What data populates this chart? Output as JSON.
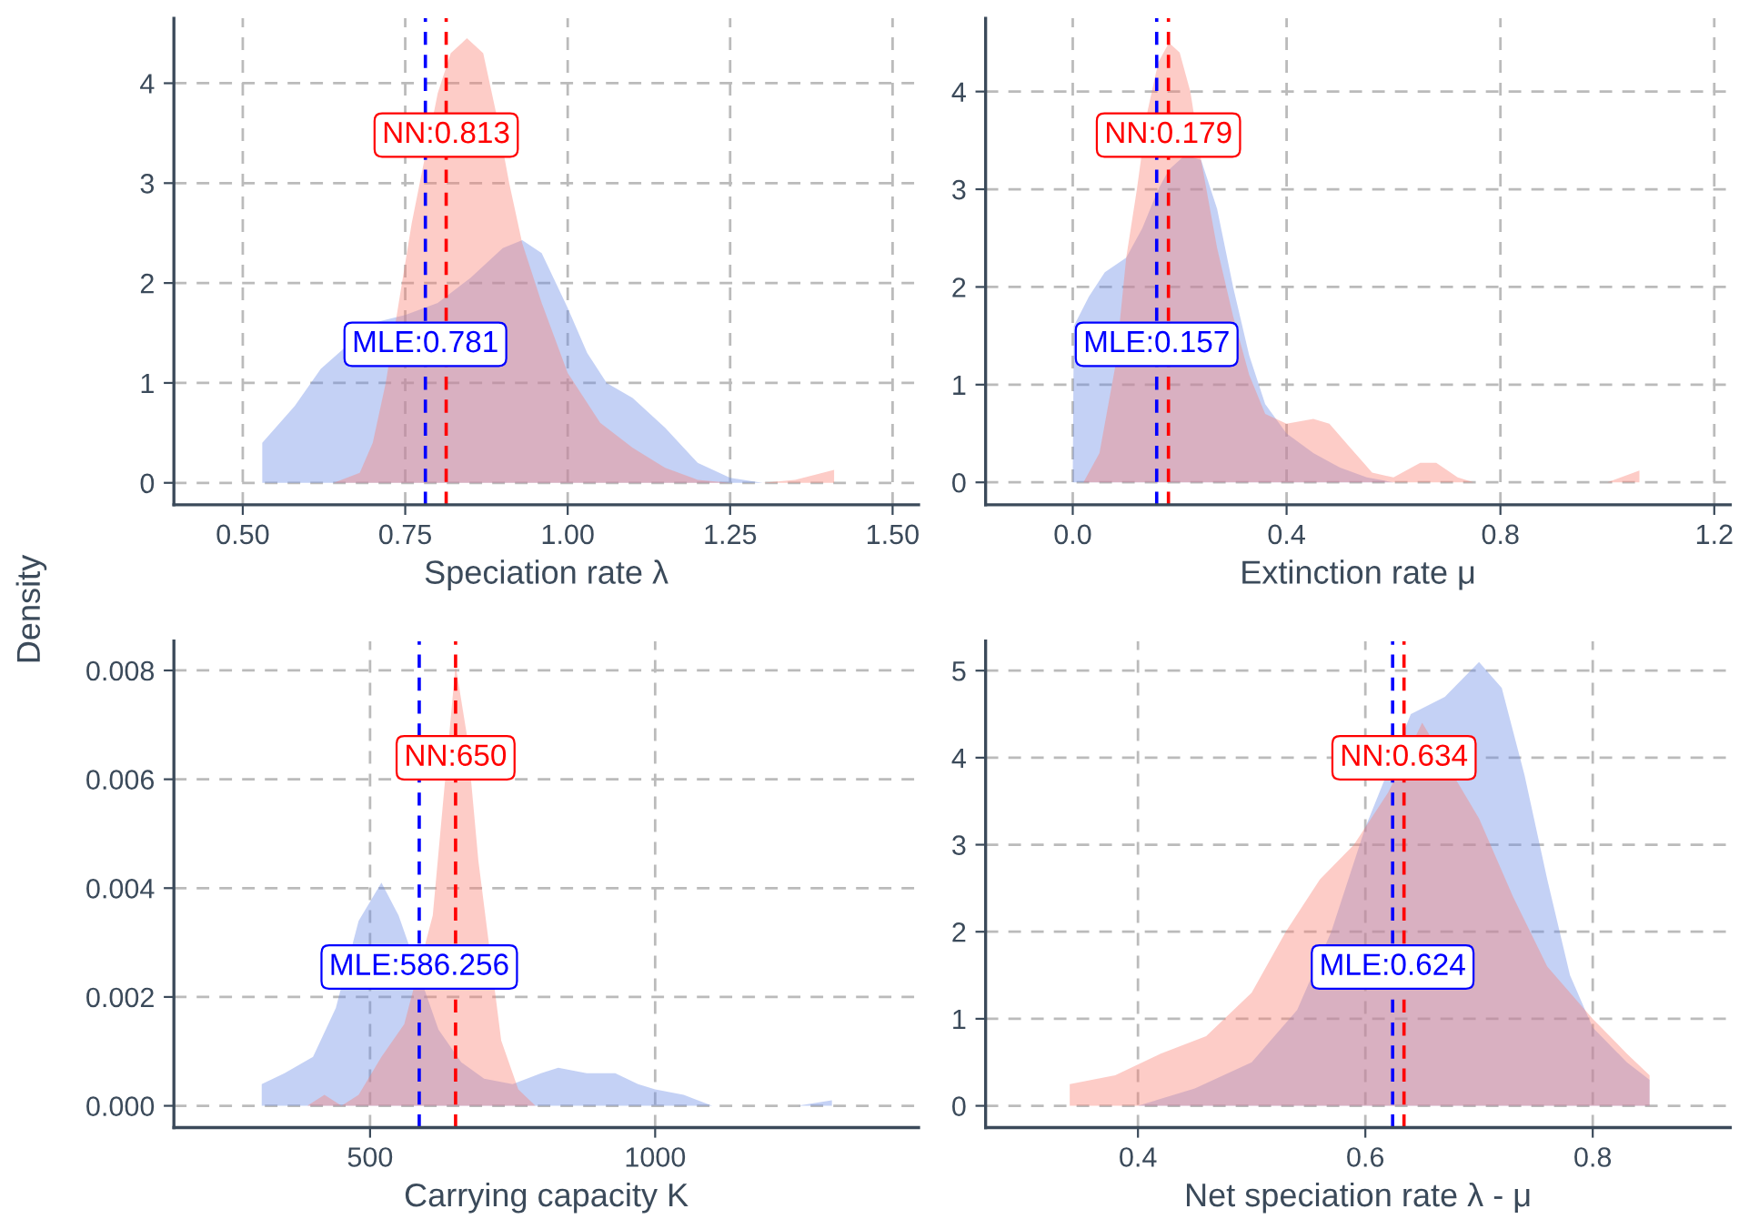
{
  "chart_data": [
    {
      "type": "area",
      "xlabel": "Speciation rate λ",
      "ylabel": "Density",
      "grid": true,
      "xlim": [
        0.394,
        1.54
      ],
      "ylim": [
        -0.22,
        4.65
      ],
      "xticks": [
        {
          "value": 0.5,
          "label": "0.50"
        },
        {
          "value": 0.75,
          "label": "0.75"
        },
        {
          "value": 1.0,
          "label": "1.00"
        },
        {
          "value": 1.25,
          "label": "1.25"
        },
        {
          "value": 1.5,
          "label": "1.50"
        }
      ],
      "yticks": [
        0,
        1,
        2,
        3,
        4
      ],
      "series": [
        {
          "color": "#6b8de6",
          "x": [
            0.53,
            0.58,
            0.62,
            0.7,
            0.75,
            0.8,
            0.85,
            0.9,
            0.93,
            0.96,
            1.0,
            1.03,
            1.06,
            1.1,
            1.15,
            1.2,
            1.25,
            1.3,
            1.35
          ],
          "values": [
            0.4,
            0.77,
            1.14,
            1.6,
            1.68,
            1.8,
            2.05,
            2.35,
            2.43,
            2.3,
            1.75,
            1.3,
            1.0,
            0.85,
            0.55,
            0.2,
            0.05,
            0.0,
            0.0
          ]
        },
        {
          "color": "#fa8072",
          "x": [
            0.64,
            0.68,
            0.7,
            0.72,
            0.74,
            0.76,
            0.8,
            0.82,
            0.845,
            0.87,
            0.89,
            0.91,
            0.93,
            0.96,
            1.0,
            1.05,
            1.1,
            1.15,
            1.2,
            1.25,
            1.3,
            1.35,
            1.41
          ],
          "values": [
            0.0,
            0.1,
            0.4,
            1.0,
            1.8,
            2.6,
            3.9,
            4.3,
            4.45,
            4.3,
            3.7,
            3.0,
            2.4,
            1.8,
            1.1,
            0.6,
            0.35,
            0.15,
            0.03,
            0.0,
            0.0,
            0.03,
            0.13
          ]
        }
      ],
      "ref_lines": [
        {
          "axis": "x",
          "value": 0.813,
          "label": "NN:0.813",
          "color": "#ff0000",
          "line_style": "dashed"
        },
        {
          "axis": "x",
          "value": 0.781,
          "label": "MLE:0.781",
          "color": "#0000ff",
          "line_style": "dashed"
        }
      ]
    },
    {
      "type": "area",
      "xlabel": "Extinction rate μ",
      "grid": true,
      "xlim": [
        -0.163,
        1.23
      ],
      "ylim": [
        -0.23,
        4.75
      ],
      "xticks": [
        {
          "value": 0.0,
          "label": "0.0"
        },
        0.4,
        0.8,
        1.2
      ],
      "yticks": [
        0,
        1,
        2,
        3,
        4
      ],
      "series": [
        {
          "color": "#6b8de6",
          "x": [
            0.0,
            0.002,
            0.03,
            0.06,
            0.1,
            0.13,
            0.16,
            0.18,
            0.21,
            0.24,
            0.27,
            0.3,
            0.33,
            0.36,
            0.4,
            0.45,
            0.5,
            0.55,
            0.6
          ],
          "values": [
            0.05,
            1.6,
            1.9,
            2.15,
            2.3,
            2.6,
            3.0,
            3.2,
            3.35,
            3.3,
            2.8,
            2.0,
            1.3,
            0.8,
            0.5,
            0.3,
            0.15,
            0.05,
            0.0
          ]
        },
        {
          "color": "#fa8072",
          "x": [
            0.02,
            0.05,
            0.08,
            0.1,
            0.12,
            0.14,
            0.16,
            0.18,
            0.2,
            0.22,
            0.24,
            0.27,
            0.3,
            0.33,
            0.36,
            0.4,
            0.45,
            0.48,
            0.52,
            0.56,
            0.6,
            0.65,
            0.68,
            0.72,
            0.75,
            1.0,
            1.06
          ],
          "values": [
            0.0,
            0.3,
            1.2,
            2.3,
            3.0,
            3.8,
            4.3,
            4.5,
            4.4,
            4.0,
            3.3,
            2.4,
            1.7,
            1.1,
            0.7,
            0.6,
            0.65,
            0.6,
            0.35,
            0.1,
            0.05,
            0.2,
            0.2,
            0.05,
            0.0,
            0.0,
            0.12
          ]
        }
      ],
      "ref_lines": [
        {
          "axis": "x",
          "value": 0.179,
          "label": "NN:0.179",
          "color": "#ff0000",
          "line_style": "dashed"
        },
        {
          "axis": "x",
          "value": 0.157,
          "label": "MLE:0.157",
          "color": "#0000ff",
          "line_style": "dashed"
        }
      ]
    },
    {
      "type": "area",
      "xlabel": "Carrying capacity K",
      "grid": true,
      "xlim": [
        156,
        1462
      ],
      "ylim": [
        -0.0004,
        0.00854
      ],
      "xticks": [
        500,
        1000
      ],
      "yticks": [
        {
          "value": 0.0,
          "label": "0.000"
        },
        0.002,
        0.004,
        0.006,
        0.008
      ],
      "series": [
        {
          "color": "#6b8de6",
          "x": [
            310,
            350,
            400,
            440,
            480,
            520,
            550,
            620,
            660,
            700,
            750,
            800,
            830,
            880,
            930,
            970,
            1000,
            1050,
            1100,
            1150,
            1250,
            1310
          ],
          "values": [
            0.0004,
            0.0006,
            0.0009,
            0.0018,
            0.0034,
            0.0041,
            0.0035,
            0.0014,
            0.0008,
            0.0005,
            0.0004,
            0.0006,
            0.0007,
            0.0006,
            0.0006,
            0.0004,
            0.0003,
            0.0002,
            0.0,
            0.0,
            0.0,
            0.0001
          ]
        },
        {
          "color": "#fa8072",
          "x": [
            390,
            420,
            450,
            480,
            520,
            560,
            610,
            650,
            670,
            690,
            730,
            760,
            790
          ],
          "values": [
            0.0,
            0.0002,
            0.0,
            0.0002,
            0.0009,
            0.0015,
            0.0035,
            0.0081,
            0.0068,
            0.0045,
            0.0012,
            0.0003,
            0.0
          ]
        }
      ],
      "ref_lines": [
        {
          "axis": "x",
          "value": 650,
          "label": "NN:650",
          "color": "#ff0000",
          "line_style": "dashed"
        },
        {
          "axis": "x",
          "value": 586.256,
          "label": "MLE:586.256",
          "color": "#0000ff",
          "line_style": "dashed"
        }
      ]
    },
    {
      "type": "area",
      "xlabel": "Net speciation rate λ - μ",
      "grid": true,
      "xlim": [
        0.266,
        0.921
      ],
      "ylim": [
        -0.25,
        5.34
      ],
      "xticks": [
        0.4,
        0.6,
        0.8
      ],
      "yticks": [
        0,
        1,
        2,
        3,
        4,
        5
      ],
      "series": [
        {
          "color": "#6b8de6",
          "x": [
            0.4,
            0.45,
            0.5,
            0.54,
            0.57,
            0.6,
            0.64,
            0.67,
            0.7,
            0.72,
            0.74,
            0.76,
            0.78,
            0.8,
            0.83,
            0.85
          ],
          "values": [
            0.0,
            0.2,
            0.5,
            1.1,
            2.0,
            3.2,
            4.5,
            4.7,
            5.1,
            4.8,
            3.8,
            2.6,
            1.5,
            0.9,
            0.5,
            0.3
          ]
        },
        {
          "color": "#fa8072",
          "x": [
            0.34,
            0.38,
            0.42,
            0.46,
            0.5,
            0.53,
            0.56,
            0.59,
            0.62,
            0.65,
            0.7,
            0.73,
            0.76,
            0.8,
            0.83,
            0.85
          ],
          "values": [
            0.25,
            0.35,
            0.6,
            0.8,
            1.3,
            2.0,
            2.6,
            3.0,
            3.6,
            4.4,
            3.3,
            2.4,
            1.6,
            1.0,
            0.6,
            0.35
          ]
        }
      ],
      "ref_lines": [
        {
          "axis": "x",
          "value": 0.634,
          "label": "NN:0.634",
          "color": "#ff0000",
          "line_style": "dashed"
        },
        {
          "axis": "x",
          "value": 0.624,
          "label": "MLE:0.624",
          "color": "#0000ff",
          "line_style": "dashed"
        }
      ]
    }
  ]
}
